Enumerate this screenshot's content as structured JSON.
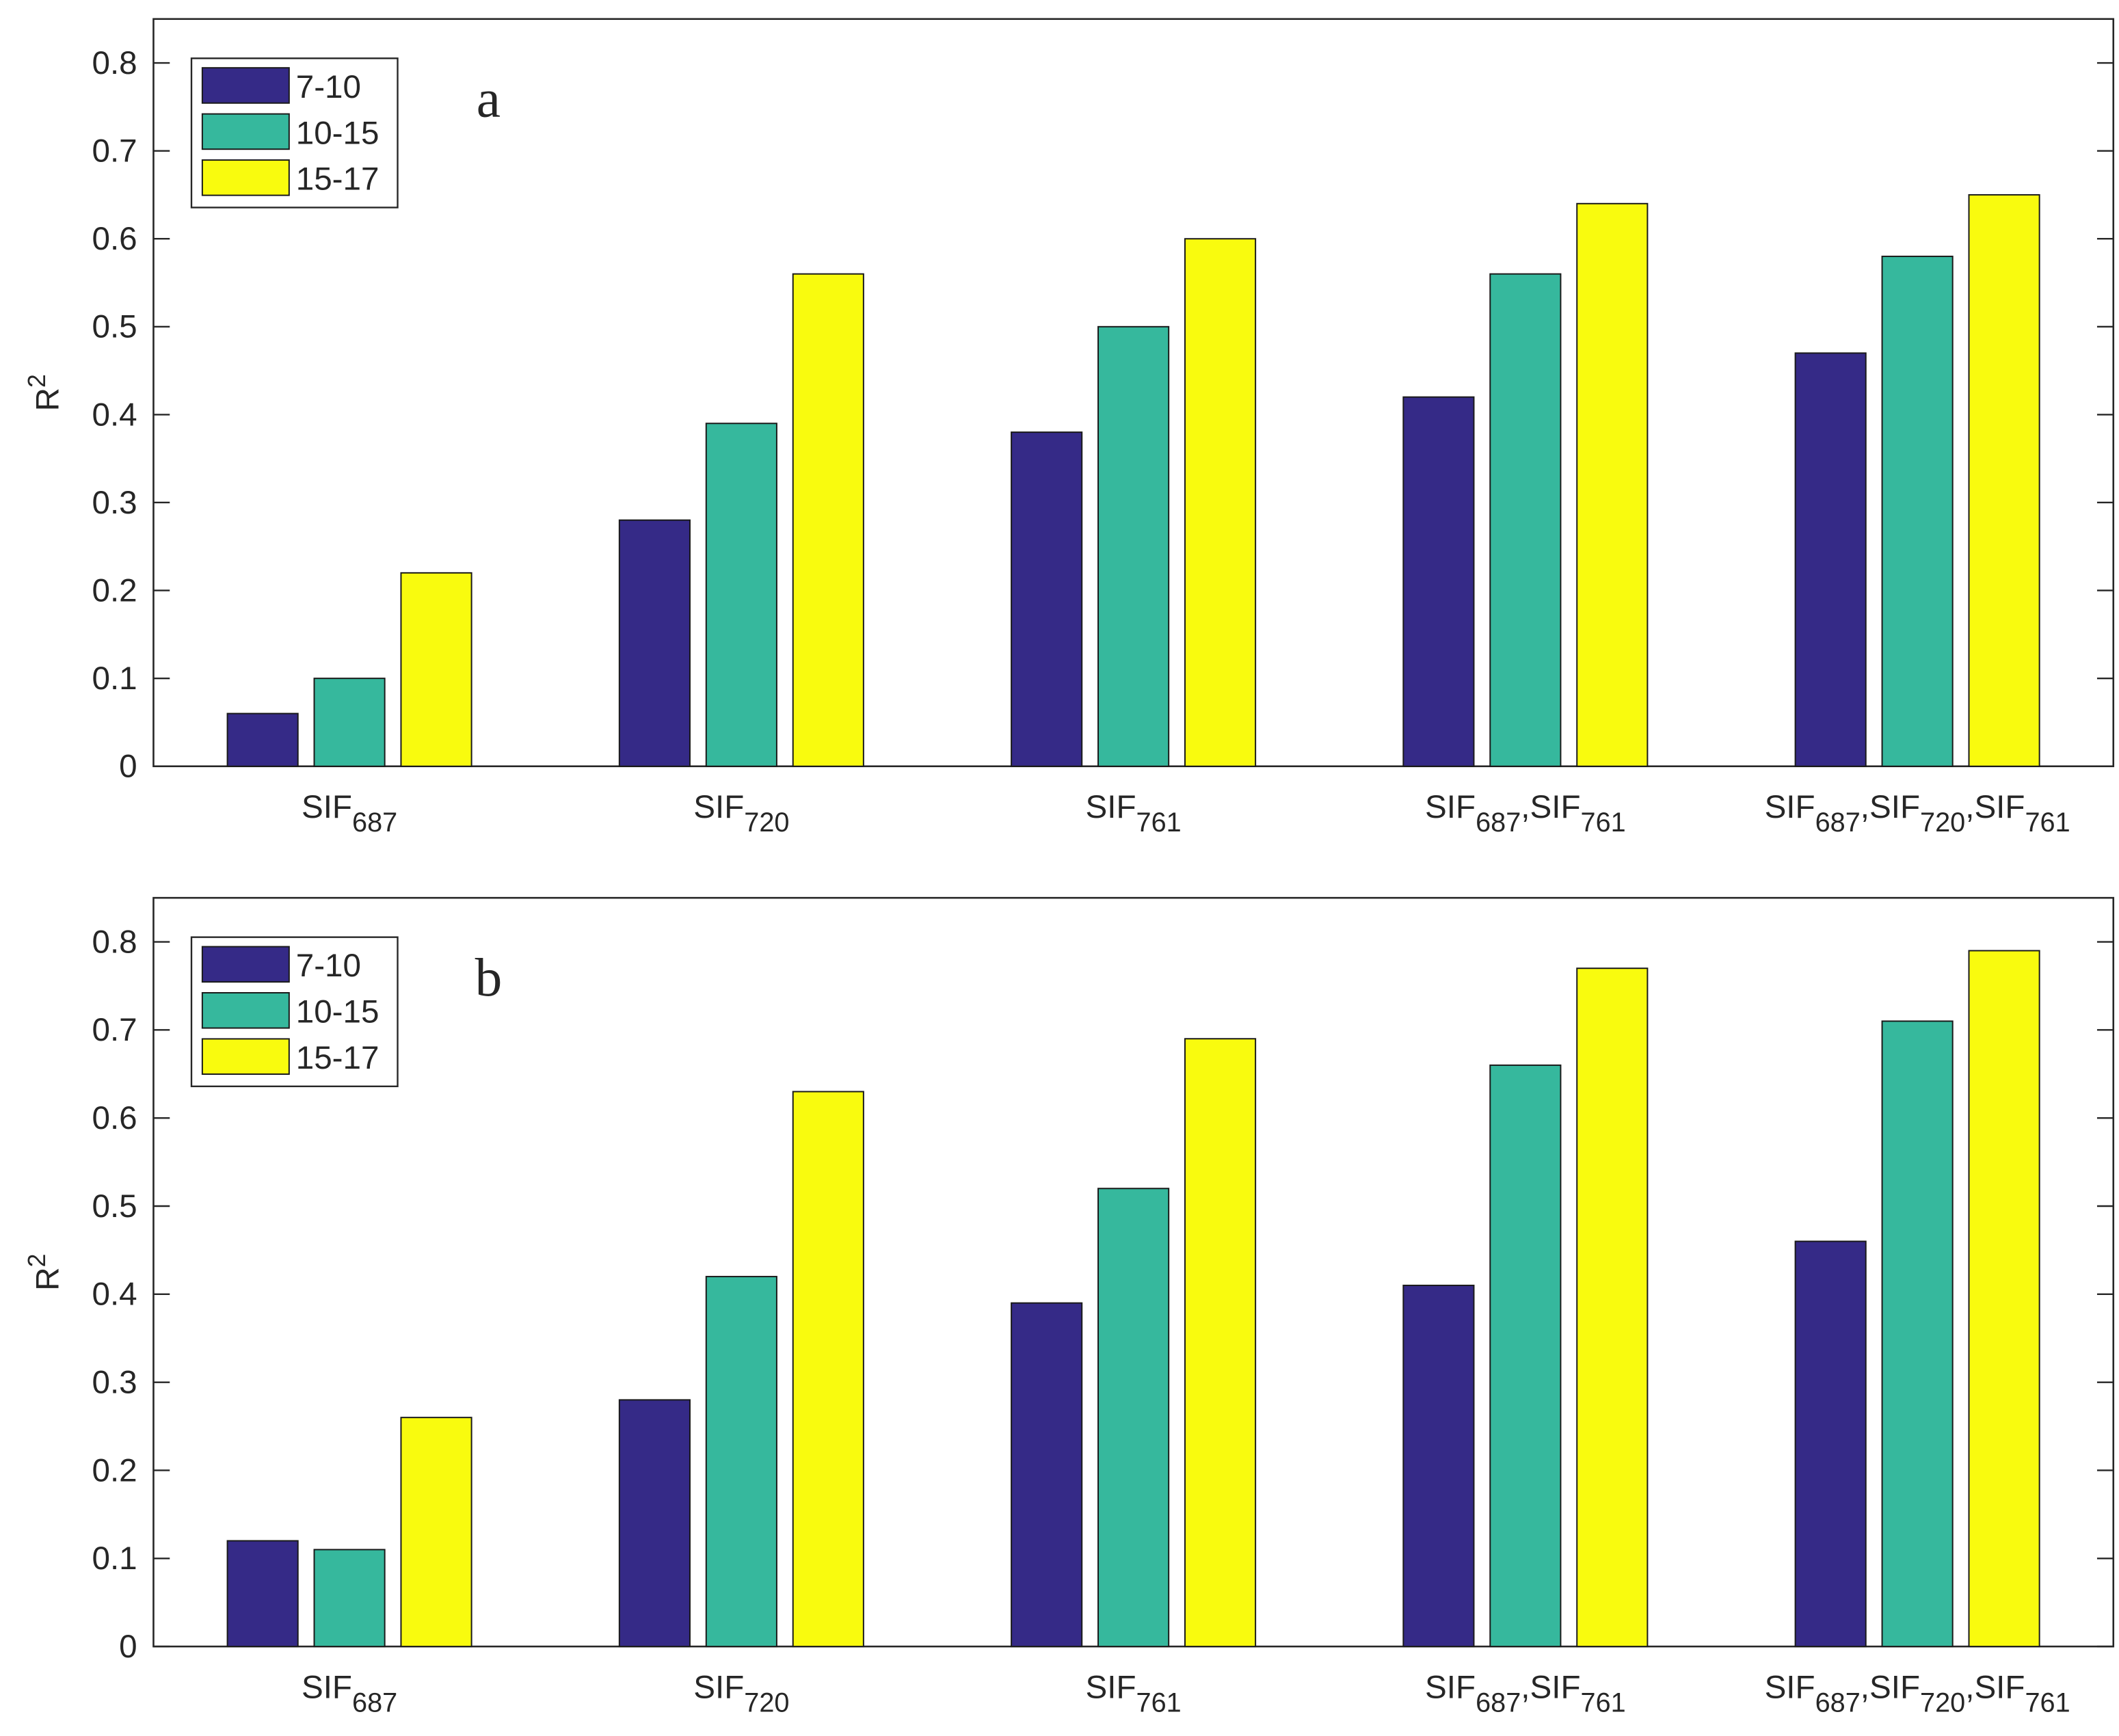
{
  "chart_data": [
    {
      "type": "bar",
      "annotation": "a",
      "y_label": "R2",
      "categories": [
        "SIF687",
        "SIF720",
        "SIF761",
        "SIF687,SIF761",
        "SIF687,SIF720,SIF761"
      ],
      "series": [
        {
          "name": "7-10",
          "color": "#352a87",
          "values": [
            0.06,
            0.28,
            0.38,
            0.42,
            0.47
          ]
        },
        {
          "name": "10-15",
          "color": "#36b89d",
          "values": [
            0.1,
            0.39,
            0.5,
            0.56,
            0.58
          ]
        },
        {
          "name": "15-17",
          "color": "#f9fb0e",
          "values": [
            0.22,
            0.56,
            0.6,
            0.64,
            0.65
          ]
        }
      ],
      "ylim": [
        0,
        0.85
      ],
      "yticks": [
        0,
        0.1,
        0.2,
        0.3,
        0.4,
        0.5,
        0.6,
        0.7,
        0.8
      ],
      "legend": "upper left"
    },
    {
      "type": "bar",
      "annotation": "b",
      "y_label": "R2",
      "categories": [
        "SIF687",
        "SIF720",
        "SIF761",
        "SIF687,SIF761",
        "SIF687,SIF720,SIF761"
      ],
      "series": [
        {
          "name": "7-10",
          "color": "#352a87",
          "values": [
            0.12,
            0.28,
            0.39,
            0.41,
            0.46
          ]
        },
        {
          "name": "10-15",
          "color": "#36b89d",
          "values": [
            0.11,
            0.42,
            0.52,
            0.66,
            0.71
          ]
        },
        {
          "name": "15-17",
          "color": "#f9fb0e",
          "values": [
            0.26,
            0.63,
            0.69,
            0.77,
            0.79
          ]
        }
      ],
      "ylim": [
        0,
        0.85
      ],
      "yticks": [
        0,
        0.1,
        0.2,
        0.3,
        0.4,
        0.5,
        0.6,
        0.7,
        0.8
      ],
      "legend": "upper left"
    }
  ]
}
